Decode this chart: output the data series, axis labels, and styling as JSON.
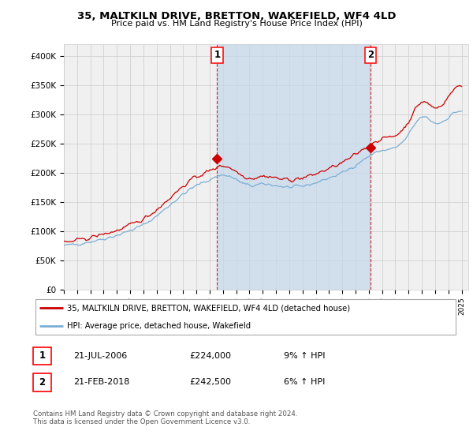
{
  "title": "35, MALTKILN DRIVE, BRETTON, WAKEFIELD, WF4 4LD",
  "subtitle": "Price paid vs. HM Land Registry's House Price Index (HPI)",
  "ylim": [
    0,
    420000
  ],
  "yticks": [
    0,
    50000,
    100000,
    150000,
    200000,
    250000,
    300000,
    350000,
    400000
  ],
  "ytick_labels": [
    "£0",
    "£50K",
    "£100K",
    "£150K",
    "£200K",
    "£250K",
    "£300K",
    "£350K",
    "£400K"
  ],
  "xlim_start": 1995.0,
  "xlim_end": 2025.5,
  "plot_bg": "#f0f0f0",
  "red_color": "#cc0000",
  "blue_color": "#7bafd4",
  "fill_color": "#c5d8ec",
  "purchase1_year": 2006.55,
  "purchase1_price": 224000,
  "purchase2_year": 2018.12,
  "purchase2_price": 242500,
  "legend_label_red": "35, MALTKILN DRIVE, BRETTON, WAKEFIELD, WF4 4LD (detached house)",
  "legend_label_blue": "HPI: Average price, detached house, Wakefield",
  "annotation1_date": "21-JUL-2006",
  "annotation1_price": "£224,000",
  "annotation1_hpi": "9% ↑ HPI",
  "annotation2_date": "21-FEB-2018",
  "annotation2_price": "£242,500",
  "annotation2_hpi": "6% ↑ HPI",
  "footer": "Contains HM Land Registry data © Crown copyright and database right 2024.\nThis data is licensed under the Open Government Licence v3.0."
}
